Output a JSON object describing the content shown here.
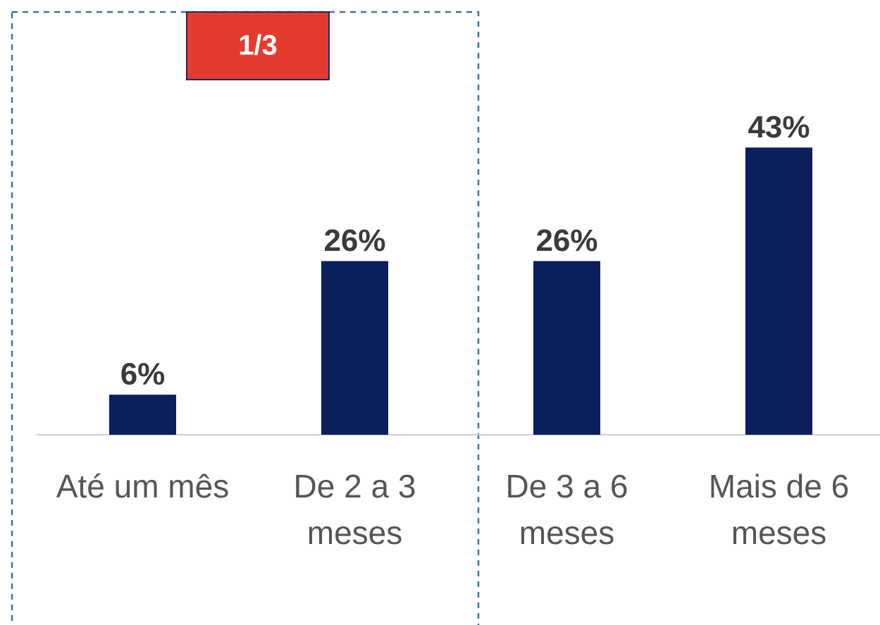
{
  "chart_data": {
    "type": "bar",
    "annotation": "1/3",
    "categories": [
      "Até um mês",
      "De 2 a 3 meses",
      "De 3 a 6 meses",
      "Mais de 6 meses"
    ],
    "values": [
      6,
      26,
      26,
      43
    ],
    "value_labels": [
      "6%",
      "26%",
      "26%",
      "43%"
    ],
    "color": "#0b1f5c",
    "ylim": [
      0,
      50
    ]
  }
}
